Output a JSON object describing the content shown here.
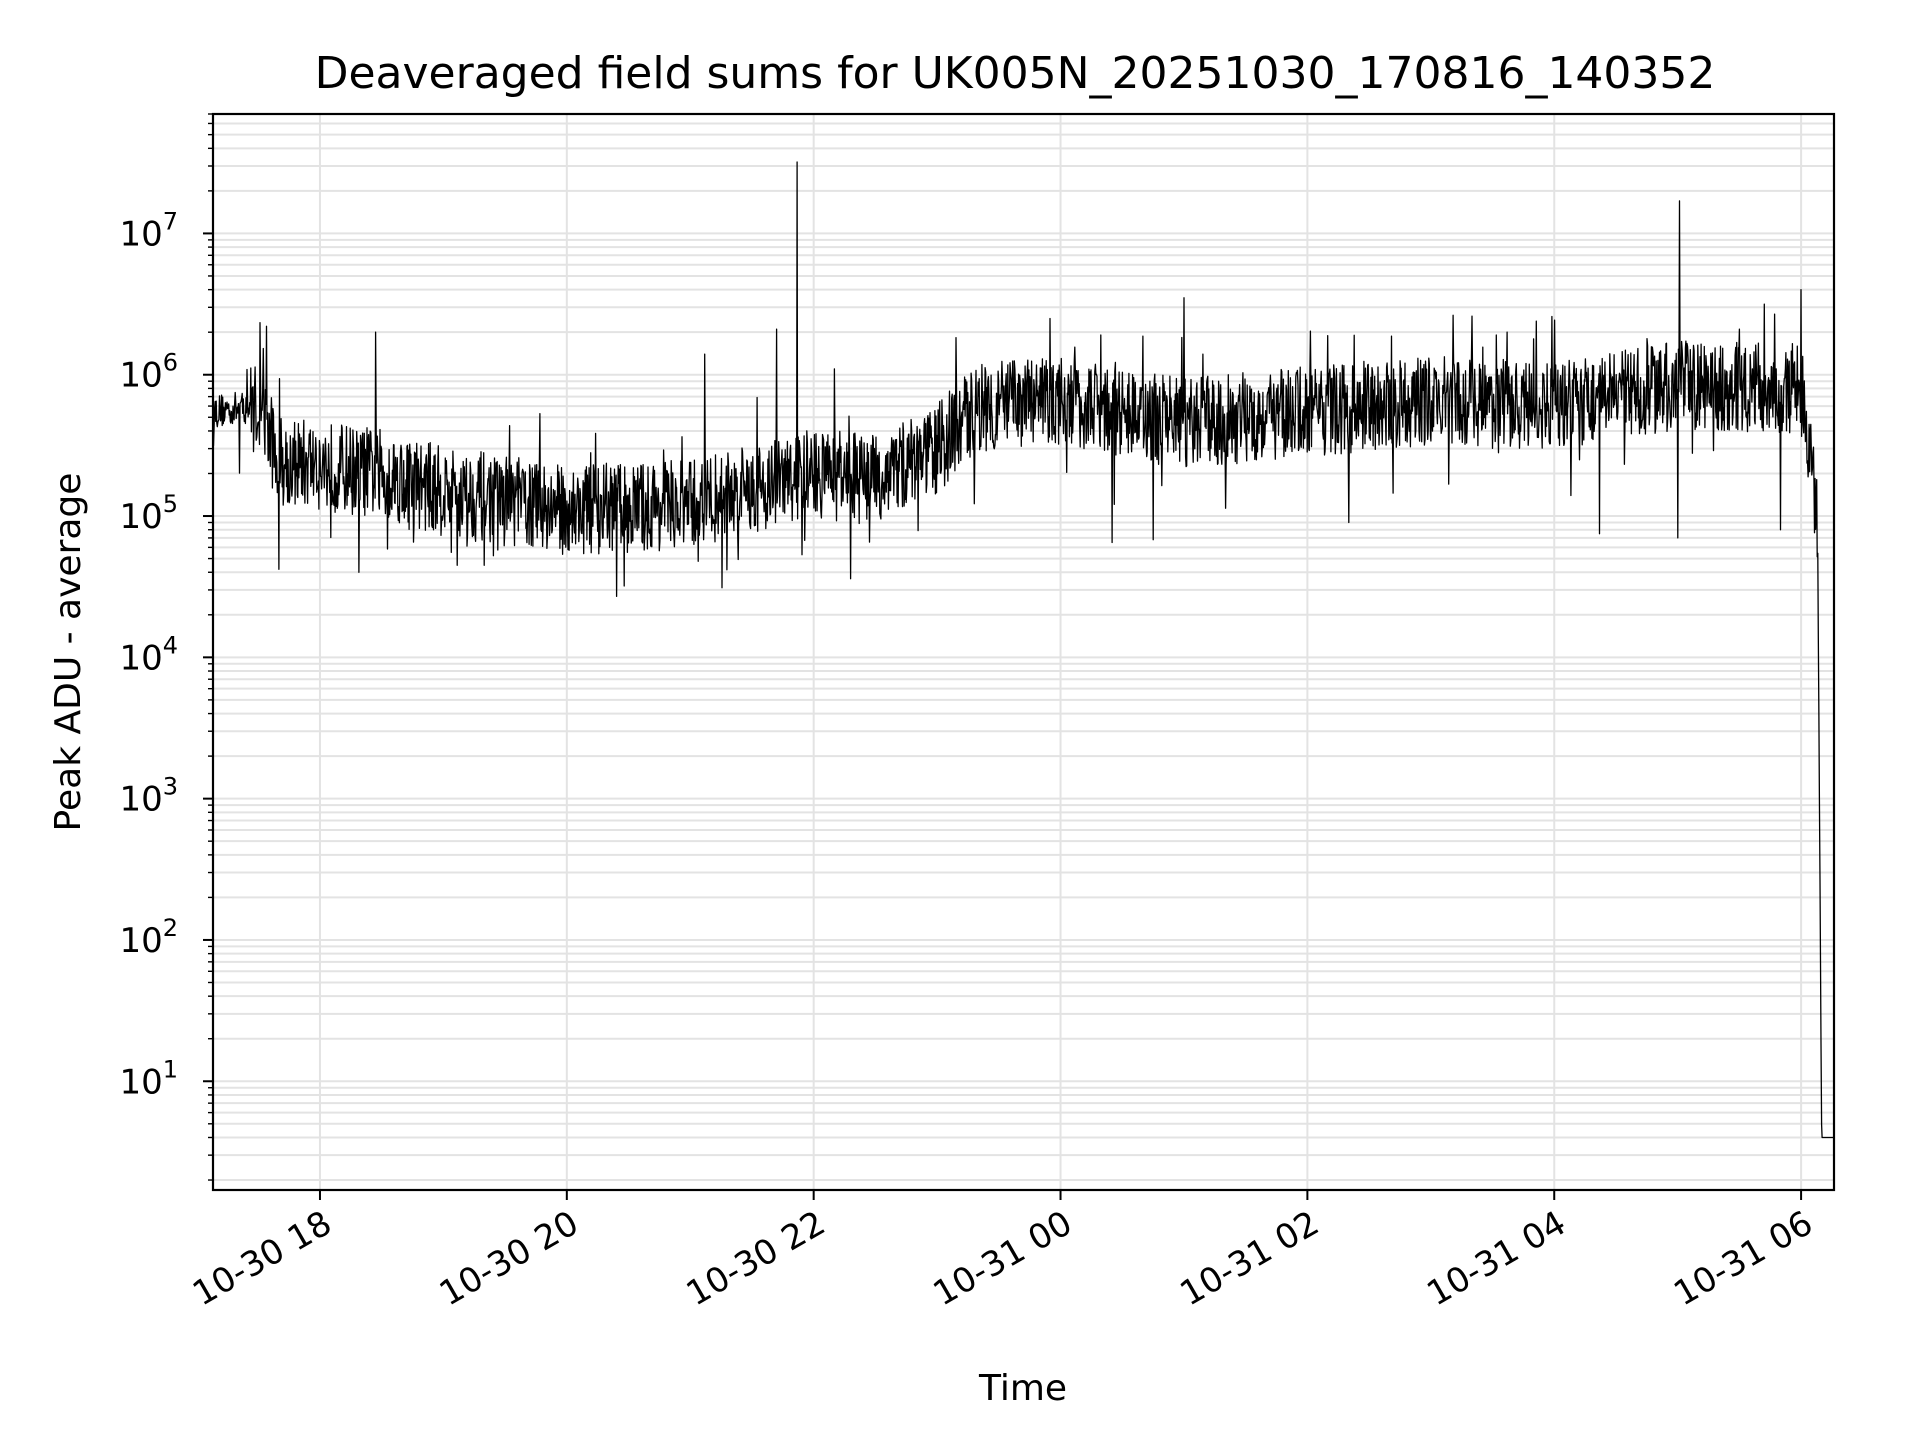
{
  "chart_data": {
    "type": "line",
    "title": "Deaveraged field sums for UK005N_20251030_170816_140352",
    "xlabel": "Time",
    "ylabel": "Peak ADU - average",
    "x_range_hours": [
      "10-30 17:08",
      "10-31 06:16"
    ],
    "x_tick_labels": [
      "10-30 18",
      "10-30 20",
      "10-30 22",
      "10-31 00",
      "10-31 02",
      "10-31 04",
      "10-31 06"
    ],
    "y_scale": "log",
    "y_tick_labels": [
      {
        "base": "10",
        "exp": "1"
      },
      {
        "base": "10",
        "exp": "2"
      },
      {
        "base": "10",
        "exp": "3"
      },
      {
        "base": "10",
        "exp": "4"
      },
      {
        "base": "10",
        "exp": "5"
      },
      {
        "base": "10",
        "exp": "6"
      },
      {
        "base": "10",
        "exp": "7"
      }
    ],
    "ylim": [
      1.7,
      70000000
    ],
    "grid": true,
    "line_color": "#000000",
    "grid_color": "#e3e3e3",
    "series_baseline": [
      {
        "time": "10-30 17:08",
        "value": 550000
      },
      {
        "time": "10-30 17:30",
        "value": 600000
      },
      {
        "time": "10-30 17:40",
        "value": 250000
      },
      {
        "time": "10-30 18:30",
        "value": 200000
      },
      {
        "time": "10-30 19:00",
        "value": 150000
      },
      {
        "time": "10-30 20:00",
        "value": 110000
      },
      {
        "time": "10-30 21:00",
        "value": 120000
      },
      {
        "time": "10-30 22:00",
        "value": 200000
      },
      {
        "time": "10-30 22:30",
        "value": 180000
      },
      {
        "time": "10-30 23:00",
        "value": 300000
      },
      {
        "time": "10-30 23:20",
        "value": 600000
      },
      {
        "time": "10-31 00:00",
        "value": 650000
      },
      {
        "time": "10-31 01:00",
        "value": 450000
      },
      {
        "time": "10-31 02:00",
        "value": 550000
      },
      {
        "time": "10-31 03:00",
        "value": 650000
      },
      {
        "time": "10-31 04:00",
        "value": 600000
      },
      {
        "time": "10-31 05:00",
        "value": 850000
      },
      {
        "time": "10-31 06:00",
        "value": 800000
      },
      {
        "time": "10-31 06:08",
        "value": 100000
      },
      {
        "time": "10-31 06:10",
        "value": 4
      },
      {
        "time": "10-31 06:16",
        "value": 4
      }
    ],
    "spikes": [
      {
        "time": "10-30 17:34",
        "value": 2200000
      },
      {
        "time": "10-30 18:27",
        "value": 2000000
      },
      {
        "time": "10-30 21:07",
        "value": 1400000
      },
      {
        "time": "10-30 21:42",
        "value": 2100000
      },
      {
        "time": "10-30 21:52",
        "value": 32000000
      },
      {
        "time": "10-30 22:10",
        "value": 1100000
      },
      {
        "time": "10-30 23:55",
        "value": 2500000
      },
      {
        "time": "10-31 01:00",
        "value": 3500000
      },
      {
        "time": "10-31 03:20",
        "value": 2600000
      },
      {
        "time": "10-31 03:37",
        "value": 2000000
      },
      {
        "time": "10-31 04:45",
        "value": 1800000
      },
      {
        "time": "10-31 05:01",
        "value": 17000000
      },
      {
        "time": "10-31 05:30",
        "value": 2100000
      },
      {
        "time": "10-31 06:00",
        "value": 4000000
      }
    ],
    "dips": [
      {
        "time": "10-30 17:40",
        "value": 42000
      },
      {
        "time": "10-30 18:19",
        "value": 40000
      },
      {
        "time": "10-30 20:28",
        "value": 32000
      },
      {
        "time": "10-30 22:18",
        "value": 36000
      },
      {
        "time": "10-31 00:25",
        "value": 65000
      },
      {
        "time": "10-31 00:45",
        "value": 68000
      },
      {
        "time": "10-31 02:20",
        "value": 90000
      },
      {
        "time": "10-31 04:22",
        "value": 75000
      },
      {
        "time": "10-31 05:00",
        "value": 70000
      },
      {
        "time": "10-31 05:50",
        "value": 80000
      }
    ]
  }
}
